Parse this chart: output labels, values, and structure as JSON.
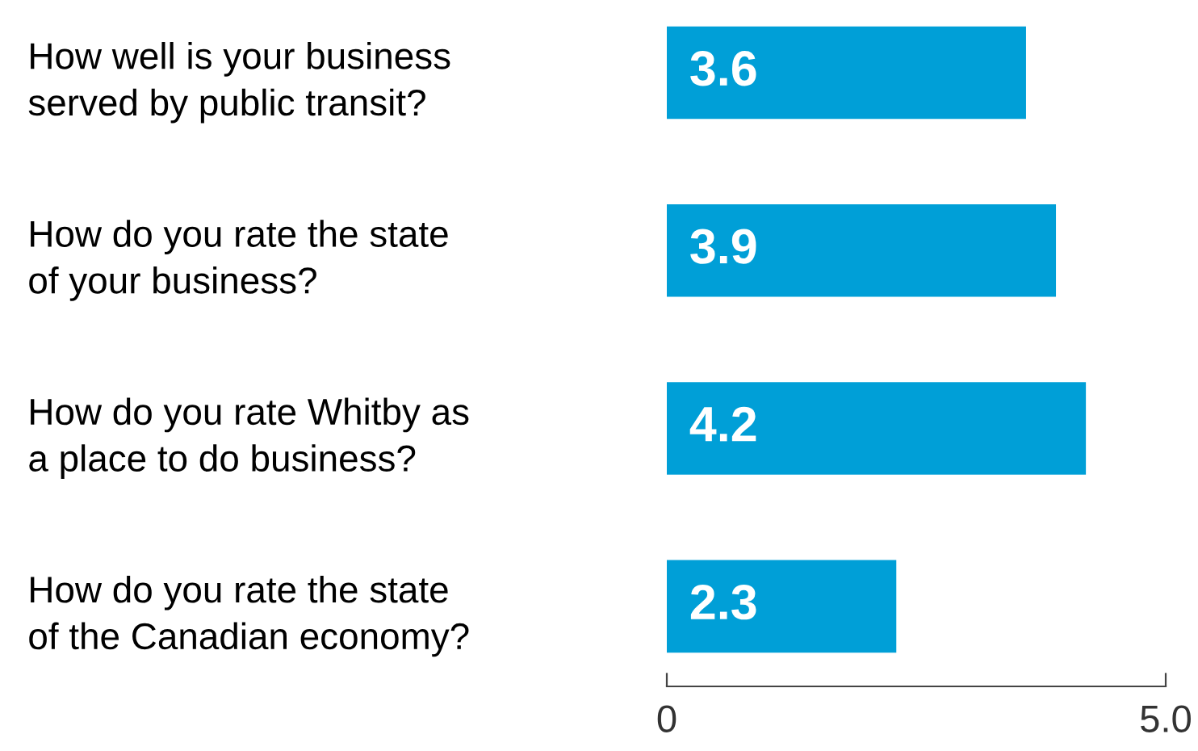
{
  "chart_data": {
    "type": "bar",
    "orientation": "horizontal",
    "categories": [
      "How well is your business\nserved by public transit?",
      "How do you rate the state\nof your business?",
      "How do you rate Whitby as\na place to do business?",
      "How do you rate the state\nof the Canadian economy?"
    ],
    "values": [
      3.6,
      3.9,
      4.2,
      2.3
    ],
    "color": "#009fd7",
    "xlim": [
      0,
      5
    ],
    "xticks": [
      0,
      {
        "value": 5,
        "label": "5.0"
      }
    ],
    "data_labels": true,
    "grid": false,
    "legend": false
  }
}
